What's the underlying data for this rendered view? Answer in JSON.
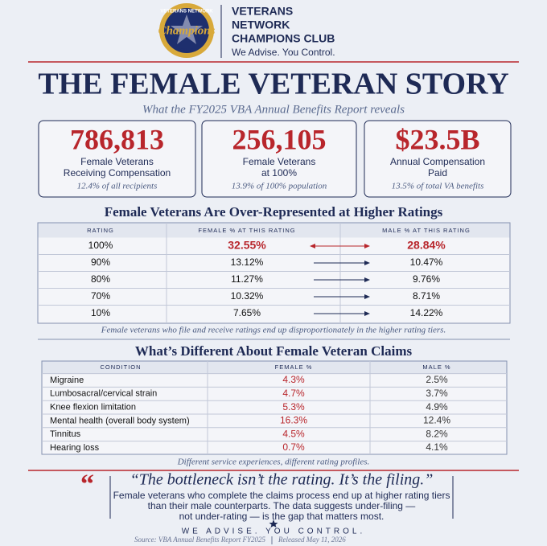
{
  "header": {
    "logo_top": "VETERANS NETWORK",
    "logo_script": "Champions",
    "logo_bottom": "CLUB",
    "org_lines": [
      "VETERANS",
      "NETWORK",
      "CHAMPIONS CLUB"
    ],
    "tagline": "We Advise. You Control."
  },
  "title": "THE FEMALE VETERAN STORY",
  "subtitle": "What the FY2025 VBA Annual Benefits Report reveals",
  "stats": [
    {
      "value": "786,813",
      "label_lines": [
        "Female Veterans",
        "Receiving Compensation"
      ],
      "note": "12.4% of all recipients"
    },
    {
      "value": "256,105",
      "label_lines": [
        "Female Veterans",
        "at 100%"
      ],
      "note": "13.9% of 100% population"
    },
    {
      "value": "$23.5B",
      "label_lines": [
        "Annual Compensation",
        "Paid"
      ],
      "note": "13.5% of total VA benefits"
    }
  ],
  "ratings": {
    "title": "Female Veterans Are Over-Represented at Higher Ratings",
    "headers": [
      "RATING",
      "FEMALE % AT THIS RATING",
      "MALE % AT THIS RATING"
    ],
    "rows": [
      [
        "100%",
        "32.55%",
        "28.84%"
      ],
      [
        "90%",
        "13.12%",
        "10.47%"
      ],
      [
        "80%",
        "11.27%",
        "9.76%"
      ],
      [
        "70%",
        "10.32%",
        "8.71%"
      ],
      [
        "10%",
        "7.65%",
        "14.22%"
      ]
    ],
    "caption": "Female veterans who file and receive ratings end up disproportionately in the higher rating tiers."
  },
  "conditions": {
    "title": "What’s Different About Female Veteran Claims",
    "headers": [
      "CONDITION",
      "FEMALE %",
      "MALE %"
    ],
    "rows": [
      [
        "Migraine",
        "4.3%",
        "2.5%"
      ],
      [
        "Lumbosacral/cervical strain",
        "4.7%",
        "3.7%"
      ],
      [
        "Knee flexion limitation",
        "5.3%",
        "4.9%"
      ],
      [
        "Mental health (overall body system)",
        "16.3%",
        "12.4%"
      ],
      [
        "Tinnitus",
        "4.5%",
        "8.2%"
      ],
      [
        "Hearing loss",
        "0.7%",
        "4.1%"
      ]
    ],
    "caption": "Different service experiences, different rating profiles."
  },
  "quote": {
    "headline": "“The bottleneck isn’t the rating. It’s the filing.”",
    "body_lines": [
      "Female veterans who complete the claims process end up at higher rating tiers",
      "than their male counterparts. The data suggests under-filing —",
      "not under-rating — is the gap that matters most."
    ]
  },
  "footer": {
    "motto": "WE ADVISE. YOU CONTROL.",
    "source": "Source: VBA Annual Benefits Report FY2025",
    "released": "Released May 11, 2026"
  }
}
